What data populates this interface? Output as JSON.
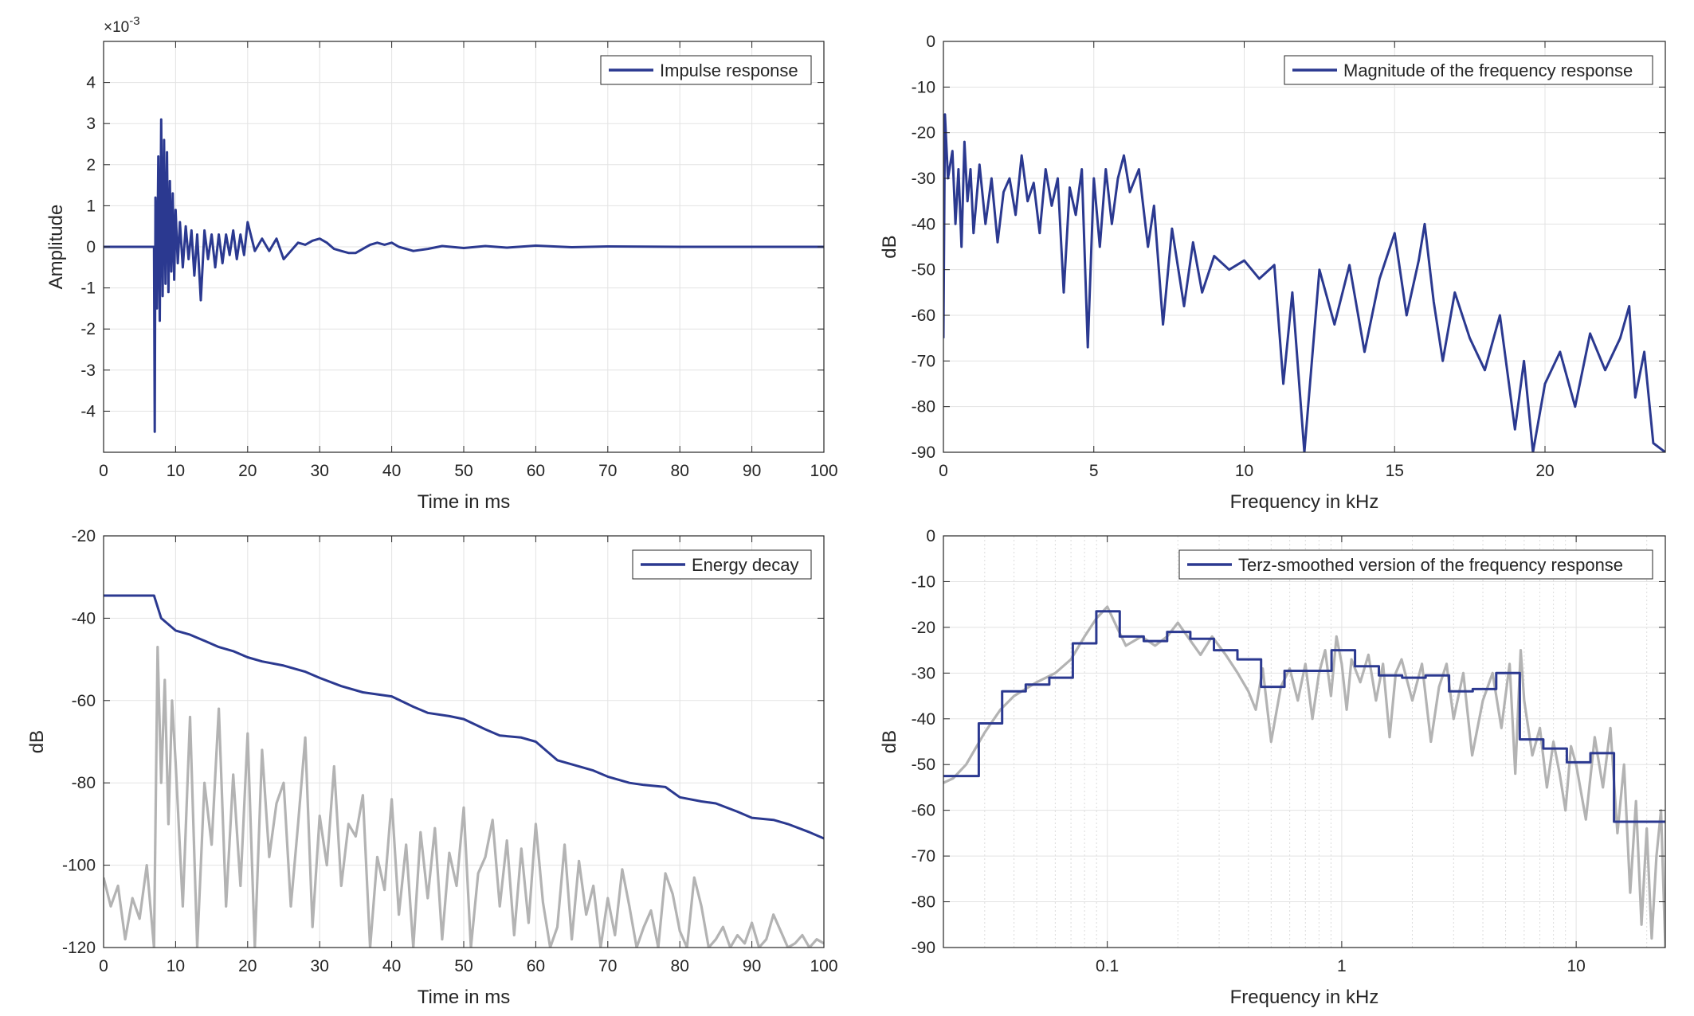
{
  "chart_data": [
    {
      "type": "line",
      "xlabel": "Time in ms",
      "ylabel": "Amplitude",
      "y_exponent_label": "×10",
      "y_exponent_power": "-3",
      "xlim": [
        0,
        100
      ],
      "ylim": [
        -5.0,
        5.0
      ],
      "xticks": [
        0,
        10,
        20,
        30,
        40,
        50,
        60,
        70,
        80,
        90,
        100
      ],
      "yticks": [
        -4,
        -3,
        -2,
        -1,
        0,
        1,
        2,
        3,
        4
      ],
      "grid": true,
      "legend_position": "top-right",
      "series": [
        {
          "name": "Impulse response",
          "color": "#2b3990",
          "x": [
            0,
            7,
            7.1,
            7.2,
            7.4,
            7.6,
            7.8,
            8.0,
            8.2,
            8.4,
            8.6,
            8.8,
            9.0,
            9.2,
            9.4,
            9.6,
            9.8,
            10.0,
            10.3,
            10.6,
            11.0,
            11.4,
            11.8,
            12.2,
            12.6,
            13.0,
            13.5,
            14.0,
            14.5,
            15.0,
            15.5,
            16.0,
            16.5,
            17.0,
            17.5,
            18.0,
            18.5,
            19.0,
            19.5,
            20.0,
            21,
            22,
            23,
            24,
            25,
            26,
            27,
            28,
            29,
            30,
            31,
            32,
            33,
            34,
            35,
            36,
            37,
            38,
            39,
            40,
            41,
            42,
            43,
            45,
            47,
            50,
            53,
            56,
            60,
            65,
            70,
            80,
            90,
            100
          ],
          "y": [
            0,
            0,
            -4.5,
            1.2,
            -1.5,
            2.2,
            -1.8,
            3.1,
            -1.2,
            2.6,
            -0.9,
            2.3,
            -1.1,
            1.6,
            -0.6,
            1.3,
            -0.8,
            0.9,
            -0.4,
            0.6,
            -0.5,
            0.5,
            -0.3,
            0.4,
            -0.7,
            0.3,
            -1.3,
            0.4,
            -0.3,
            0.3,
            -0.5,
            0.3,
            -0.4,
            0.3,
            -0.2,
            0.4,
            -0.3,
            0.3,
            -0.2,
            0.6,
            -0.1,
            0.2,
            -0.1,
            0.2,
            -0.3,
            -0.1,
            0.1,
            0.05,
            0.15,
            0.2,
            0.1,
            -0.05,
            -0.1,
            -0.15,
            -0.15,
            -0.05,
            0.05,
            0.1,
            0.05,
            0.1,
            0.0,
            -0.05,
            -0.1,
            -0.05,
            0.02,
            -0.03,
            0.02,
            -0.02,
            0.03,
            -0.01,
            0.01,
            0.0,
            0.0,
            0.0
          ]
        }
      ]
    },
    {
      "type": "line",
      "xlabel": "Frequency in kHz",
      "ylabel": "dB",
      "xlim": [
        0,
        24
      ],
      "ylim": [
        -90,
        0
      ],
      "xticks": [
        0,
        5,
        10,
        15,
        20
      ],
      "yticks": [
        0,
        -10,
        -20,
        -30,
        -40,
        -50,
        -60,
        -70,
        -80,
        -90
      ],
      "grid": true,
      "legend_position": "top-right",
      "series": [
        {
          "name": "Magnitude of the frequency response",
          "color": "#2b3990",
          "x": [
            0,
            0.05,
            0.15,
            0.3,
            0.4,
            0.5,
            0.6,
            0.7,
            0.8,
            0.9,
            1.0,
            1.2,
            1.4,
            1.6,
            1.8,
            2.0,
            2.2,
            2.4,
            2.6,
            2.8,
            3.0,
            3.2,
            3.4,
            3.6,
            3.8,
            4.0,
            4.2,
            4.4,
            4.6,
            4.8,
            5.0,
            5.2,
            5.4,
            5.6,
            5.8,
            6.0,
            6.2,
            6.5,
            6.8,
            7.0,
            7.3,
            7.6,
            8.0,
            8.3,
            8.6,
            9.0,
            9.5,
            10.0,
            10.5,
            11.0,
            11.3,
            11.6,
            12.0,
            12.5,
            13.0,
            13.5,
            14.0,
            14.5,
            15.0,
            15.4,
            15.8,
            16.0,
            16.3,
            16.6,
            17.0,
            17.5,
            18.0,
            18.5,
            19.0,
            19.3,
            19.6,
            20.0,
            20.5,
            21.0,
            21.5,
            22.0,
            22.5,
            22.8,
            23.0,
            23.3,
            23.6,
            24.0
          ],
          "y": [
            -65,
            -16,
            -30,
            -24,
            -40,
            -28,
            -45,
            -22,
            -35,
            -28,
            -42,
            -27,
            -40,
            -30,
            -44,
            -33,
            -30,
            -38,
            -25,
            -35,
            -31,
            -42,
            -28,
            -36,
            -30,
            -55,
            -32,
            -38,
            -28,
            -67,
            -30,
            -45,
            -28,
            -40,
            -30,
            -25,
            -33,
            -28,
            -45,
            -36,
            -62,
            -41,
            -58,
            -44,
            -55,
            -47,
            -50,
            -48,
            -52,
            -49,
            -75,
            -55,
            -90,
            -50,
            -62,
            -49,
            -68,
            -52,
            -42,
            -60,
            -48,
            -40,
            -57,
            -70,
            -55,
            -65,
            -72,
            -60,
            -85,
            -70,
            -90,
            -75,
            -68,
            -80,
            -64,
            -72,
            -65,
            -58,
            -78,
            -68,
            -88,
            -90
          ]
        }
      ]
    },
    {
      "type": "line",
      "xlabel": "Time in ms",
      "ylabel": "dB",
      "xlim": [
        0,
        100
      ],
      "ylim": [
        -120,
        -20
      ],
      "xticks": [
        0,
        10,
        20,
        30,
        40,
        50,
        60,
        70,
        80,
        90,
        100
      ],
      "yticks": [
        -20,
        -40,
        -60,
        -80,
        -100,
        -120
      ],
      "grid": true,
      "legend_position": "top-right",
      "series": [
        {
          "name": "Energy decay",
          "color": "#2b3990",
          "x": [
            0,
            7,
            8,
            10,
            12,
            14,
            16,
            18,
            20,
            22,
            25,
            28,
            30,
            33,
            36,
            40,
            43,
            45,
            48,
            50,
            53,
            55,
            58,
            60,
            63,
            65,
            68,
            70,
            73,
            75,
            78,
            80,
            83,
            85,
            88,
            90,
            93,
            95,
            98,
            100
          ],
          "y": [
            -34.5,
            -34.5,
            -40,
            -43,
            -44,
            -45.5,
            -47,
            -48,
            -49.5,
            -50.5,
            -51.5,
            -53,
            -54.5,
            -56.5,
            -58,
            -59,
            -61.5,
            -63,
            -63.8,
            -64.5,
            -67,
            -68.5,
            -69,
            -70,
            -74.5,
            -75.5,
            -77,
            -78.5,
            -80,
            -80.5,
            -81,
            -83.5,
            -84.5,
            -85,
            -87,
            -88.5,
            -89,
            -90,
            -92,
            -93.5
          ]
        },
        {
          "name": "",
          "color": "#b3b3b3",
          "x": [
            0,
            1,
            2,
            3,
            4,
            5,
            6,
            7,
            7.5,
            8,
            8.5,
            9,
            9.5,
            10,
            11,
            12,
            13,
            14,
            15,
            16,
            17,
            18,
            19,
            20,
            21,
            22,
            23,
            24,
            25,
            26,
            27,
            28,
            29,
            30,
            31,
            32,
            33,
            34,
            35,
            36,
            37,
            38,
            39,
            40,
            41,
            42,
            43,
            44,
            45,
            46,
            47,
            48,
            49,
            50,
            51,
            52,
            53,
            54,
            55,
            56,
            57,
            58,
            59,
            60,
            61,
            62,
            63,
            64,
            65,
            66,
            67,
            68,
            69,
            70,
            71,
            72,
            73,
            74,
            75,
            76,
            77,
            78,
            79,
            80,
            81,
            82,
            83,
            84,
            85,
            86,
            87,
            88,
            89,
            90,
            91,
            92,
            93,
            94,
            95,
            96,
            97,
            98,
            99,
            100
          ],
          "y": [
            -103,
            -110,
            -105,
            -118,
            -108,
            -113,
            -100,
            -120,
            -47,
            -80,
            -55,
            -90,
            -60,
            -75,
            -110,
            -64,
            -120,
            -80,
            -95,
            -62,
            -110,
            -78,
            -105,
            -68,
            -120,
            -72,
            -98,
            -85,
            -80,
            -110,
            -90,
            -69,
            -115,
            -88,
            -100,
            -76,
            -105,
            -90,
            -93,
            -83,
            -120,
            -98,
            -106,
            -84,
            -112,
            -95,
            -120,
            -92,
            -108,
            -91,
            -118,
            -97,
            -105,
            -86,
            -120,
            -102,
            -98,
            -89,
            -110,
            -94,
            -117,
            -96,
            -114,
            -90,
            -109,
            -120,
            -115,
            -95,
            -118,
            -99,
            -112,
            -105,
            -120,
            -108,
            -117,
            -101,
            -110,
            -120,
            -115,
            -111,
            -120,
            -102,
            -107,
            -116,
            -120,
            -103,
            -110,
            -120,
            -118,
            -115,
            -120,
            -117,
            -119,
            -114,
            -120,
            -118,
            -112,
            -116,
            -120,
            -119,
            -117,
            -120,
            -118,
            -119
          ]
        }
      ]
    },
    {
      "type": "line",
      "xlabel": "Frequency in kHz",
      "ylabel": "dB",
      "x_scale": "log",
      "xlim": [
        0.02,
        24
      ],
      "ylim": [
        -90,
        0
      ],
      "xticks": [
        0.1,
        1,
        10
      ],
      "xtick_labels": [
        "0.1",
        "1",
        "10"
      ],
      "yticks": [
        0,
        -10,
        -20,
        -30,
        -40,
        -50,
        -60,
        -70,
        -80,
        -90
      ],
      "grid": true,
      "legend_position": "top-right",
      "series": [
        {
          "name": "Terz-smoothed version of the frequency response",
          "color": "#2b3990",
          "x": [
            0.02,
            0.0283,
            0.0283,
            0.0356,
            0.0356,
            0.0449,
            0.0449,
            0.0566,
            0.0566,
            0.0713,
            0.0713,
            0.0898,
            0.0898,
            0.113,
            0.113,
            0.143,
            0.143,
            0.18,
            0.18,
            0.226,
            0.226,
            0.285,
            0.285,
            0.359,
            0.359,
            0.453,
            0.453,
            0.57,
            0.57,
            0.718,
            0.718,
            0.905,
            0.905,
            1.14,
            1.14,
            1.44,
            1.44,
            1.81,
            1.81,
            2.28,
            2.28,
            2.87,
            2.87,
            3.62,
            3.62,
            4.56,
            4.56,
            5.75,
            5.75,
            7.24,
            7.24,
            9.12,
            9.12,
            11.5,
            11.5,
            14.5,
            14.5,
            18.2,
            18.2,
            24
          ],
          "y": [
            -52.5,
            -52.5,
            -41,
            -41,
            -34,
            -34,
            -32.5,
            -32.5,
            -31,
            -31,
            -23.5,
            -23.5,
            -16.5,
            -16.5,
            -22,
            -22,
            -23,
            -23,
            -21,
            -21,
            -22.5,
            -22.5,
            -25,
            -25,
            -27,
            -27,
            -33,
            -33,
            -29.5,
            -29.5,
            -29.5,
            -29.5,
            -25,
            -25,
            -28.5,
            -28.5,
            -30.5,
            -30.5,
            -31,
            -31,
            -30.5,
            -30.5,
            -34,
            -34,
            -33.5,
            -33.5,
            -30,
            -30,
            -44.5,
            -44.5,
            -46.5,
            -46.5,
            -49.5,
            -49.5,
            -47.5,
            -47.5,
            -62.5,
            -62.5,
            -62.5,
            -62.5
          ]
        },
        {
          "name": "",
          "color": "#b3b3b3",
          "x": [
            0.02,
            0.022,
            0.025,
            0.03,
            0.035,
            0.04,
            0.05,
            0.06,
            0.07,
            0.08,
            0.09,
            0.1,
            0.11,
            0.12,
            0.14,
            0.16,
            0.18,
            0.2,
            0.22,
            0.25,
            0.28,
            0.32,
            0.36,
            0.4,
            0.43,
            0.46,
            0.5,
            0.55,
            0.6,
            0.65,
            0.7,
            0.75,
            0.8,
            0.85,
            0.9,
            0.95,
            1.0,
            1.05,
            1.1,
            1.2,
            1.3,
            1.4,
            1.5,
            1.6,
            1.7,
            1.8,
            2.0,
            2.2,
            2.4,
            2.6,
            2.8,
            3.0,
            3.3,
            3.6,
            4.0,
            4.4,
            4.8,
            5.2,
            5.5,
            5.8,
            6.0,
            6.5,
            7.0,
            7.5,
            8.0,
            8.5,
            9.0,
            9.5,
            10,
            11,
            12,
            13,
            14,
            15,
            16,
            17,
            18,
            19,
            20,
            21,
            22,
            23,
            24
          ],
          "y": [
            -54,
            -53,
            -50,
            -43,
            -38,
            -35,
            -32,
            -30,
            -27,
            -22,
            -18,
            -15.5,
            -20,
            -24,
            -22,
            -24,
            -22,
            -19,
            -22,
            -26,
            -22,
            -26,
            -30,
            -34,
            -38,
            -29,
            -45,
            -33,
            -29,
            -36,
            -28,
            -40,
            -30,
            -25,
            -35,
            -22,
            -28,
            -38,
            -27,
            -32,
            -26,
            -36,
            -28,
            -44,
            -30,
            -27,
            -36,
            -28,
            -45,
            -33,
            -28,
            -40,
            -30,
            -48,
            -36,
            -30,
            -42,
            -28,
            -52,
            -25,
            -36,
            -48,
            -42,
            -55,
            -45,
            -52,
            -60,
            -46,
            -50,
            -62,
            -44,
            -55,
            -42,
            -65,
            -50,
            -78,
            -58,
            -85,
            -64,
            -88,
            -70,
            -60,
            -90
          ]
        }
      ]
    }
  ]
}
